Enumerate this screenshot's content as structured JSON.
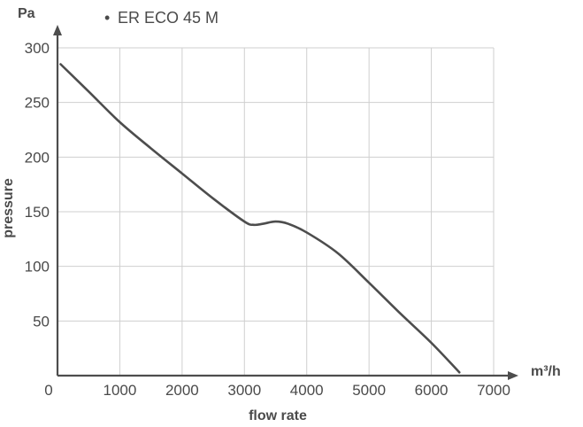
{
  "chart_data": {
    "type": "line",
    "title": "",
    "legend": {
      "bullet": "•",
      "label": "ER ECO 45 M",
      "placement": "top-left"
    },
    "xlabel": "flow rate",
    "ylabel": "pressure",
    "x_unit": "m³/h",
    "y_unit": "Pa",
    "xlim": [
      0,
      7000
    ],
    "ylim": [
      0,
      300
    ],
    "x_ticks": [
      0,
      1000,
      2000,
      3000,
      4000,
      5000,
      6000,
      7000
    ],
    "x_tick_labels": [
      "0",
      "1000",
      "2000",
      "3000",
      "4000",
      "5000",
      "6000",
      "7000"
    ],
    "y_ticks": [
      50,
      100,
      150,
      200,
      250,
      300
    ],
    "y_tick_labels": [
      "50",
      "100",
      "150",
      "200",
      "250",
      "300"
    ],
    "grid": true,
    "series": [
      {
        "name": "ER ECO 45 M",
        "x": [
          50,
          500,
          1000,
          1500,
          2000,
          2500,
          3000,
          3150,
          3300,
          3500,
          3700,
          4000,
          4500,
          5000,
          5500,
          6000,
          6450
        ],
        "y": [
          285,
          260,
          232,
          208,
          185,
          162,
          141,
          138,
          139,
          141,
          139,
          131,
          112,
          85,
          57,
          30,
          3
        ]
      }
    ],
    "colors": {
      "curve": "#4d4d4d",
      "axis": "#4d4d4d",
      "grid": "#cfcfcf",
      "text": "#4a4a4a"
    }
  }
}
